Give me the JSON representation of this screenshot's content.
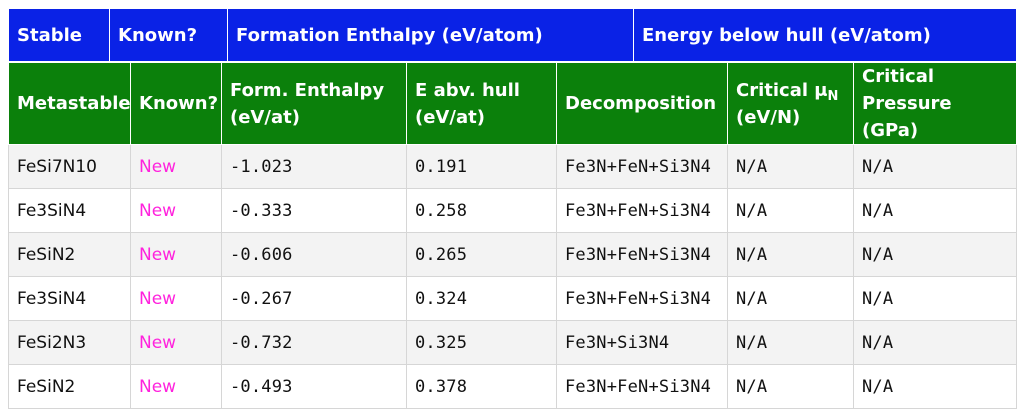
{
  "stable_header": {
    "stable": "Stable",
    "known": "Known?",
    "formation_enthalpy": "Formation Enthalpy (eV/atom)",
    "energy_below_hull": "Energy below hull (eV/atom)"
  },
  "meta_header": {
    "metastable": "Metastable",
    "known": "Known?",
    "form_enthalpy": "Form. Enthalpy (eV/at)",
    "e_abv_hull": "E abv. hull (eV/at)",
    "decomposition": "Decomposition",
    "critical_mu_prefix": "Critical μ",
    "critical_mu_sub": "N",
    "critical_mu_unit": "(eV/N)",
    "critical_pressure": "Critical Pressure (GPa)"
  },
  "rows": [
    {
      "formula": "FeSi7N10",
      "known": "New",
      "enthalpy": "-1.023",
      "hull": "0.191",
      "decomposition": "Fe3N+FeN+Si3N4",
      "mu": "N/A",
      "pressure": "N/A"
    },
    {
      "formula": "Fe3SiN4",
      "known": "New",
      "enthalpy": "-0.333",
      "hull": "0.258",
      "decomposition": "Fe3N+FeN+Si3N4",
      "mu": "N/A",
      "pressure": "N/A"
    },
    {
      "formula": "FeSiN2",
      "known": "New",
      "enthalpy": "-0.606",
      "hull": "0.265",
      "decomposition": "Fe3N+FeN+Si3N4",
      "mu": "N/A",
      "pressure": "N/A"
    },
    {
      "formula": "Fe3SiN4",
      "known": "New",
      "enthalpy": "-0.267",
      "hull": "0.324",
      "decomposition": "Fe3N+FeN+Si3N4",
      "mu": "N/A",
      "pressure": "N/A"
    },
    {
      "formula": "FeSi2N3",
      "known": "New",
      "enthalpy": "-0.732",
      "hull": "0.325",
      "decomposition": "Fe3N+Si3N4",
      "mu": "N/A",
      "pressure": "N/A"
    },
    {
      "formula": "FeSiN2",
      "known": "New",
      "enthalpy": "-0.493",
      "hull": "0.378",
      "decomposition": "Fe3N+FeN+Si3N4",
      "mu": "N/A",
      "pressure": "N/A"
    }
  ],
  "colors": {
    "stable_header_bg": "#0a22e6",
    "metastable_header_bg": "#0b800b",
    "known_text": "#ff22dd"
  }
}
